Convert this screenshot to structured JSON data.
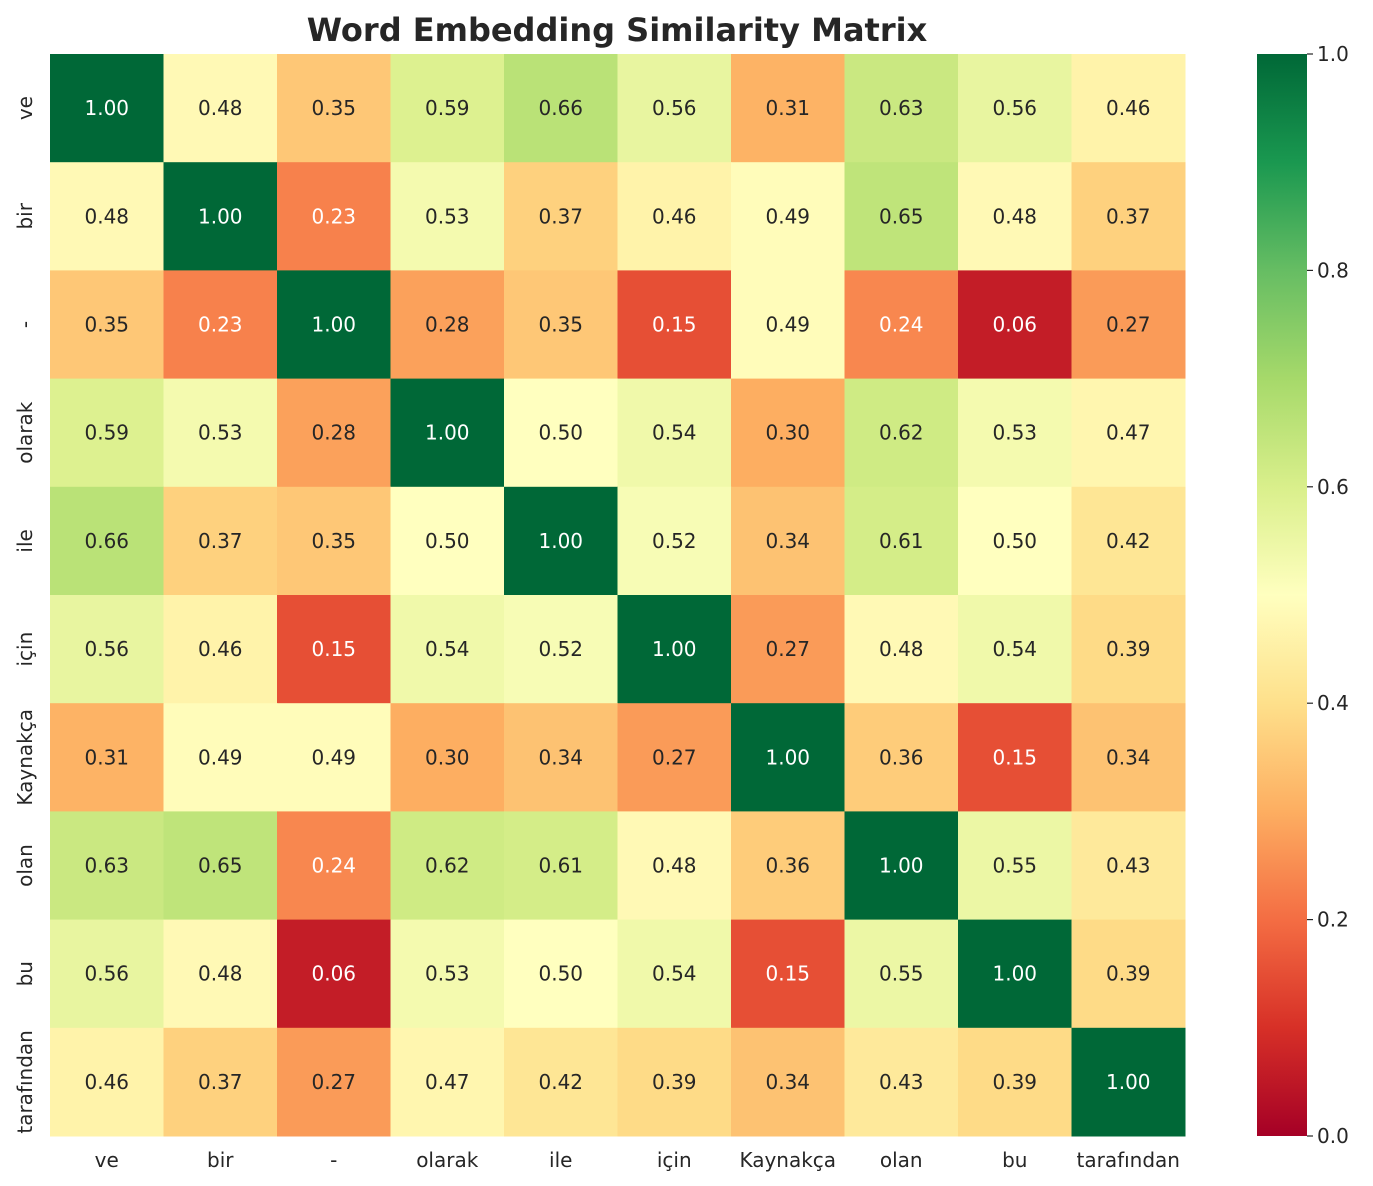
{
  "chart_data": {
    "type": "heatmap",
    "title": "Word Embedding Similarity Matrix",
    "xlabel": "",
    "ylabel": "",
    "x_categories": [
      "ve",
      "bir",
      "-",
      "olarak",
      "ile",
      "için",
      "Kaynakça",
      "olan",
      "bu",
      "tarafından"
    ],
    "y_categories": [
      "ve",
      "bir",
      "-",
      "olarak",
      "ile",
      "için",
      "Kaynakça",
      "olan",
      "bu",
      "tarafından"
    ],
    "values": [
      [
        1.0,
        0.48,
        0.35,
        0.59,
        0.66,
        0.56,
        0.31,
        0.63,
        0.56,
        0.46
      ],
      [
        0.48,
        1.0,
        0.23,
        0.53,
        0.37,
        0.46,
        0.49,
        0.65,
        0.48,
        0.37
      ],
      [
        0.35,
        0.23,
        1.0,
        0.28,
        0.35,
        0.15,
        0.49,
        0.24,
        0.06,
        0.27
      ],
      [
        0.59,
        0.53,
        0.28,
        1.0,
        0.5,
        0.54,
        0.3,
        0.62,
        0.53,
        0.47
      ],
      [
        0.66,
        0.37,
        0.35,
        0.5,
        1.0,
        0.52,
        0.34,
        0.61,
        0.5,
        0.42
      ],
      [
        0.56,
        0.46,
        0.15,
        0.54,
        0.52,
        1.0,
        0.27,
        0.48,
        0.54,
        0.39
      ],
      [
        0.31,
        0.49,
        0.49,
        0.3,
        0.34,
        0.27,
        1.0,
        0.36,
        0.15,
        0.34
      ],
      [
        0.63,
        0.65,
        0.24,
        0.62,
        0.61,
        0.48,
        0.36,
        1.0,
        0.55,
        0.43
      ],
      [
        0.56,
        0.48,
        0.06,
        0.53,
        0.5,
        0.54,
        0.15,
        0.55,
        1.0,
        0.39
      ],
      [
        0.46,
        0.37,
        0.27,
        0.47,
        0.42,
        0.39,
        0.34,
        0.43,
        0.39,
        1.0
      ]
    ],
    "annotation_format": "0.00",
    "colormap": "RdYlGn",
    "vmin": 0.0,
    "vmax": 1.0,
    "colorbar": {
      "ticks": [
        0.0,
        0.2,
        0.4,
        0.6,
        0.8,
        1.0
      ],
      "tick_labels": [
        "0.0",
        "0.2",
        "0.4",
        "0.6",
        "0.8",
        "1.0"
      ],
      "placement": "right"
    },
    "grid": false,
    "colors": {
      "text_dark": "#262626",
      "text_light": "#ffffff",
      "background": "#ffffff"
    }
  }
}
